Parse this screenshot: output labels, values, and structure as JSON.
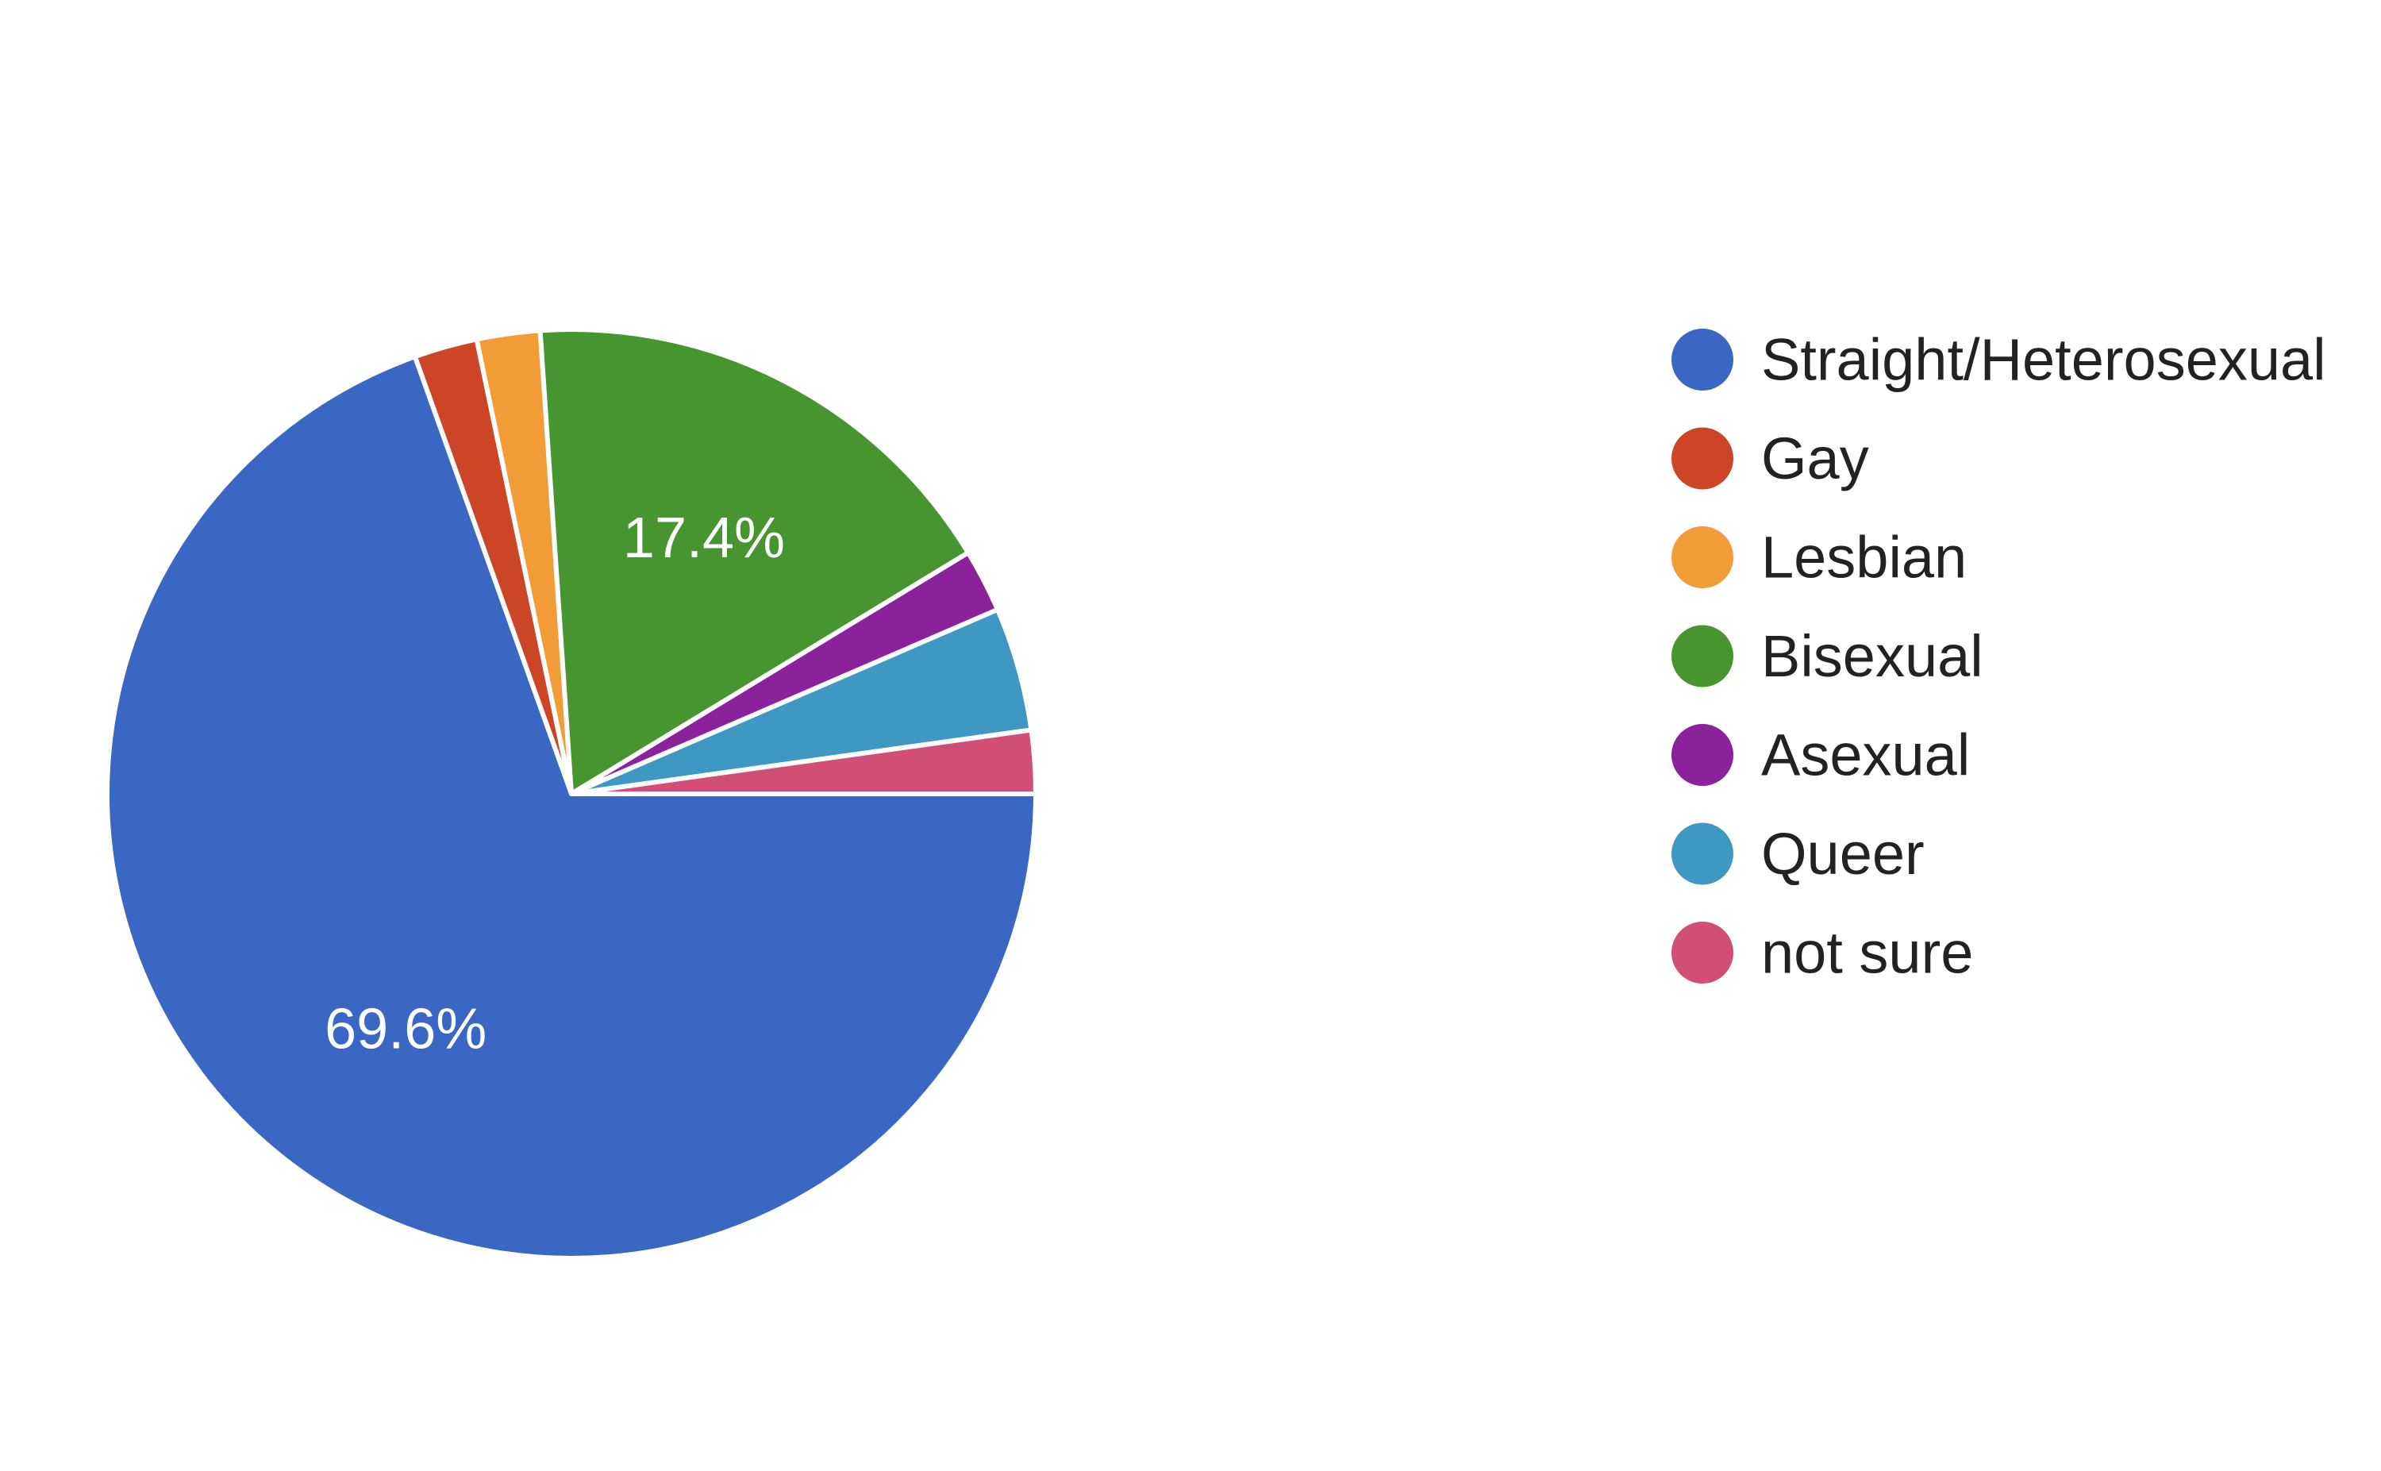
{
  "chart_data": {
    "type": "pie",
    "categories": [
      "Straight/Heterosexual",
      "Gay",
      "Lesbian",
      "Bisexual",
      "Asexual",
      "Queer",
      "not sure"
    ],
    "values": [
      69.6,
      2.2,
      2.2,
      17.4,
      2.2,
      4.3,
      2.2
    ],
    "data_labels": [
      "69.6%",
      "",
      "",
      "17.4%",
      "",
      "",
      ""
    ],
    "colors": [
      "#3a67c3",
      "#cc4526",
      "#f29c38",
      "#479530",
      "#8b229b",
      "#3e98c1",
      "#d14f77"
    ],
    "legend_position": "right",
    "start": "3 o'clock, clockwise"
  }
}
